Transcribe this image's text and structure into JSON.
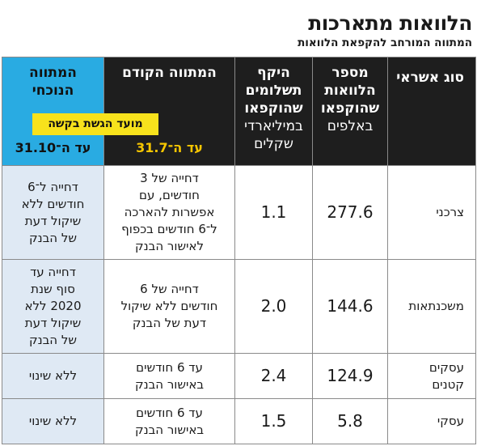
{
  "title": "הלוואות מתארכות",
  "subtitle": "המתווה המורחב להקפאת הלוואות",
  "columns": {
    "type": "סוג אשראי",
    "count": [
      "מספר",
      "הלוואות",
      "שהוקפאו"
    ],
    "count_unit": "באלפים",
    "amount": [
      "היקף",
      "תשלומים",
      "שהוקפאו"
    ],
    "amount_unit": [
      "במיליארדי",
      "שקלים"
    ],
    "previous": "המתווה הקודם",
    "current": [
      "המתווה",
      "הנוכחי"
    ],
    "deadline_label": "מועד הגשת בקשה",
    "previous_date": "עד ה־31.7",
    "current_date": "עד ה־31.10"
  },
  "rows": [
    {
      "type": [
        "צרכני"
      ],
      "count": "277.6",
      "amount": "1.1",
      "previous": [
        "דחייה של 3",
        "חודשים, עם",
        "אפשרות להארכה",
        "ל־6 חודשים בכפוף",
        "לאישור הבנק"
      ],
      "current": [
        "דחייה ל־6",
        "חודשים ללא",
        "שיקול דעת",
        "של הבנק"
      ]
    },
    {
      "type": [
        "משכנתאות"
      ],
      "count": "144.6",
      "amount": "2.0",
      "previous": [
        "דחייה של 6",
        "חודשים ללא שיקול",
        "דעת של הבנק"
      ],
      "current": [
        "דחייה עד",
        "סוף שנת",
        "2020 ללא",
        "שיקול דעת",
        "של הבנק"
      ]
    },
    {
      "type": [
        "עסקים",
        "קטנים"
      ],
      "count": "124.9",
      "amount": "2.4",
      "previous": [
        "עד 6 חודשים",
        "באישור הבנק"
      ],
      "current": [
        "ללא שינוי"
      ]
    },
    {
      "type": [
        "עסקי"
      ],
      "count": "5.8",
      "amount": "1.5",
      "previous": [
        "עד 6 חודשים",
        "באישור הבנק"
      ],
      "current": [
        "ללא שינוי"
      ]
    }
  ]
}
